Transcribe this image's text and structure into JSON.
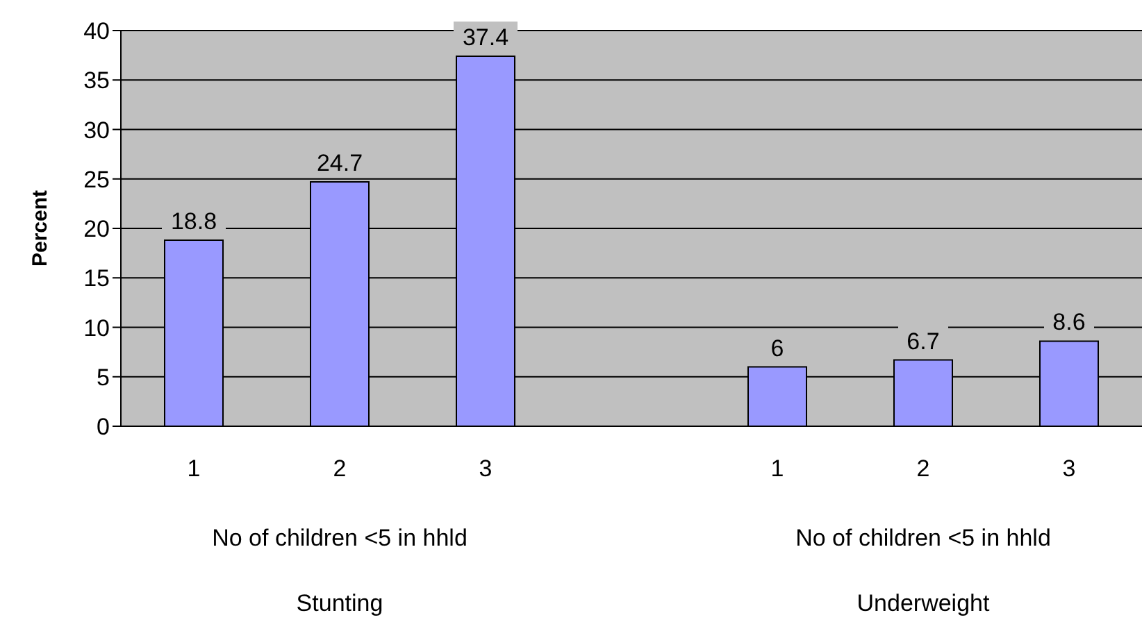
{
  "chart_data": {
    "type": "bar",
    "ylabel": "Percent",
    "categories": [
      "1",
      "2",
      "3",
      null,
      "1",
      "2",
      "3"
    ],
    "values": [
      18.8,
      24.7,
      37.4,
      null,
      6,
      6.7,
      8.6
    ],
    "color": "#9999ff",
    "data_labels": true,
    "ylim": [
      0,
      40
    ],
    "yticks": [
      0,
      5,
      10,
      15,
      20,
      25,
      30,
      35,
      40
    ],
    "grid": "y",
    "annotations": [
      "No of children <5 in hhld",
      "No of children <5 in hhld",
      "Stunting",
      "Underweight"
    ]
  }
}
